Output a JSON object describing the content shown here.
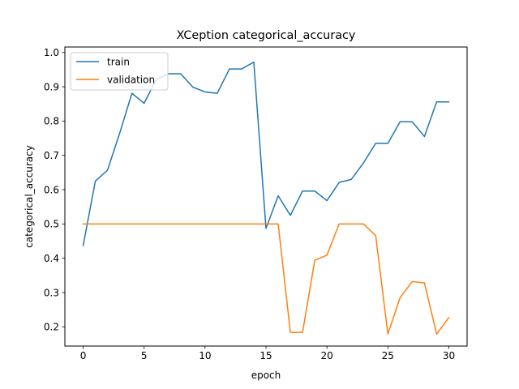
{
  "chart_data": {
    "type": "line",
    "title": "XCeption categorical_accuracy",
    "xlabel": "epoch",
    "ylabel": "categorical_accuracy",
    "xlim": [
      -1.5,
      31.5
    ],
    "ylim": [
      0.144,
      1.016
    ],
    "xticks": [
      0,
      5,
      10,
      15,
      20,
      25,
      30
    ],
    "yticks": [
      0.2,
      0.3,
      0.4,
      0.5,
      0.6,
      0.7,
      0.8,
      0.9,
      1.0
    ],
    "ytick_labels": [
      "0.2",
      "0.3",
      "0.4",
      "0.5",
      "0.6",
      "0.7",
      "0.8",
      "0.9",
      "1.0"
    ],
    "grid": false,
    "legend_position": "top-left",
    "x": [
      0,
      1,
      2,
      3,
      4,
      5,
      6,
      7,
      8,
      9,
      10,
      11,
      12,
      13,
      14,
      15,
      16,
      17,
      18,
      19,
      20,
      21,
      22,
      23,
      24,
      25,
      26,
      27,
      28,
      29,
      30
    ],
    "series": [
      {
        "name": "train",
        "color": "#1f77b4",
        "values": [
          0.437,
          0.625,
          0.657,
          0.765,
          0.881,
          0.852,
          0.921,
          0.938,
          0.938,
          0.899,
          0.885,
          0.881,
          0.952,
          0.952,
          0.972,
          0.487,
          0.582,
          0.525,
          0.596,
          0.596,
          0.568,
          0.621,
          0.63,
          0.678,
          0.735,
          0.735,
          0.798,
          0.798,
          0.755,
          0.856,
          0.856
        ]
      },
      {
        "name": "validation",
        "color": "#ff7f0e",
        "values": [
          0.5,
          0.5,
          0.5,
          0.5,
          0.5,
          0.5,
          0.5,
          0.5,
          0.5,
          0.5,
          0.5,
          0.5,
          0.5,
          0.5,
          0.5,
          0.5,
          0.5,
          0.184,
          0.184,
          0.394,
          0.409,
          0.5,
          0.5,
          0.5,
          0.466,
          0.179,
          0.285,
          0.332,
          0.328,
          0.179,
          0.227
        ]
      }
    ]
  }
}
